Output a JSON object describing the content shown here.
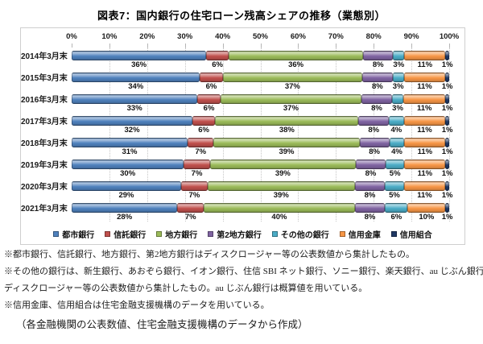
{
  "title": "図表7：国内銀行の住宅ローン残高シェアの推移（業態別）",
  "chart_data": {
    "type": "bar",
    "stacked": true,
    "orientation": "horizontal",
    "title": "図表7：国内銀行の住宅ローン残高シェアの推移（業態別）",
    "categories": [
      "2014年3月末",
      "2015年3月末",
      "2016年3月末",
      "2017年3月末",
      "2018年3月末",
      "2019年3月末",
      "2020年3月末",
      "2021年3月末"
    ],
    "series": [
      {
        "key": "city-bank",
        "name": "都市銀行",
        "color": "#4F81BD",
        "values": [
          36,
          34,
          33,
          32,
          31,
          30,
          29,
          28
        ]
      },
      {
        "key": "trust-bank",
        "name": "信託銀行",
        "color": "#C0504D",
        "values": [
          6,
          6,
          6,
          6,
          7,
          7,
          7,
          7
        ]
      },
      {
        "key": "regional-bank",
        "name": "地方銀行",
        "color": "#9BBB59",
        "values": [
          36,
          37,
          37,
          38,
          39,
          39,
          39,
          40
        ]
      },
      {
        "key": "second-regional-bank",
        "name": "第2地方銀行",
        "color": "#8064A2",
        "values": [
          8,
          8,
          8,
          8,
          8,
          8,
          8,
          8
        ]
      },
      {
        "key": "other-bank",
        "name": "その他の銀行",
        "color": "#4BACC6",
        "values": [
          3,
          3,
          3,
          4,
          4,
          5,
          5,
          6
        ]
      },
      {
        "key": "shinkin-bank",
        "name": "信用金庫",
        "color": "#F79646",
        "values": [
          11,
          11,
          11,
          11,
          11,
          11,
          11,
          10
        ]
      },
      {
        "key": "credit-union",
        "name": "信用組合",
        "color": "#1F3864",
        "values": [
          1,
          1,
          1,
          1,
          1,
          1,
          1,
          1
        ]
      }
    ],
    "value_suffix": "%",
    "x_axis": {
      "ticks": [
        "0%",
        "10%",
        "20%",
        "30%",
        "40%",
        "50%",
        "60%",
        "70%",
        "80%",
        "90%",
        "100%"
      ],
      "range": [
        0,
        100
      ]
    },
    "legend_position": "bottom-inside",
    "grid": "vertical-dotted"
  },
  "footnotes": [
    "※都市銀行、信託銀行、地方銀行、第2地方銀行はディスクロージャー等の公表数値から集計したもの。",
    "※その他の銀行は、新生銀行、あおぞら銀行、イオン銀行、住信 SBI ネット銀行、ソニー銀行、楽天銀行、au じぶん銀行の",
    "ディスクロージャー等の公表数値から集計したもの。au じぶん銀行は概算値を用いている。",
    "※信用金庫、信用組合は住宅金融支援機構のデータを用いている。"
  ],
  "source": "（各金融機関の公表数値、住宅金融支援機構のデータから作成）"
}
